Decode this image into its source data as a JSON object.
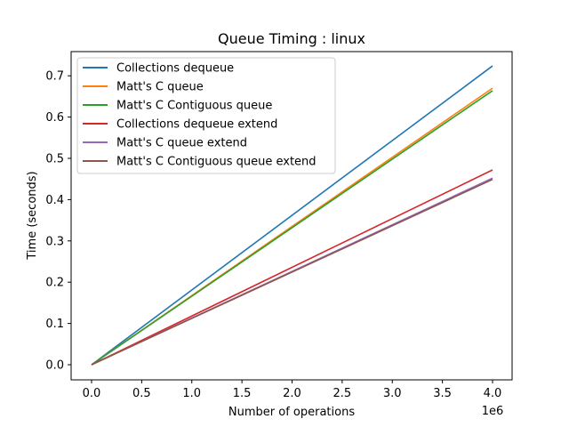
{
  "chart_data": {
    "type": "line",
    "title": "Queue Timing : linux",
    "xlabel": "Number of operations",
    "ylabel": "Time (seconds)",
    "x_offset_label": "1e6",
    "xlim": [
      -0.2,
      4.2
    ],
    "ylim": [
      -0.036,
      0.76
    ],
    "xticks": [
      "0.0",
      "0.5",
      "1.0",
      "1.5",
      "2.0",
      "2.5",
      "3.0",
      "3.5",
      "4.0"
    ],
    "yticks": [
      "0.0",
      "0.1",
      "0.2",
      "0.3",
      "0.4",
      "0.5",
      "0.6",
      "0.7"
    ],
    "grid": false,
    "legend_position": "upper left",
    "x": [
      0,
      4.0
    ],
    "series": [
      {
        "name": "Collections dequeue",
        "color": "#1f77b4",
        "values": [
          0,
          0.724
        ]
      },
      {
        "name": "Matt's C queue",
        "color": "#ff7f0e",
        "values": [
          0,
          0.67
        ]
      },
      {
        "name": "Matt's C Contiguous queue",
        "color": "#2ca02c",
        "values": [
          0,
          0.664
        ]
      },
      {
        "name": "Collections dequeue extend",
        "color": "#d62728",
        "values": [
          0,
          0.472
        ]
      },
      {
        "name": "Matt's C queue extend",
        "color": "#9467bd",
        "values": [
          0,
          0.452
        ]
      },
      {
        "name": "Matt's C Contiguous queue extend",
        "color": "#8c564b",
        "values": [
          0,
          0.449
        ]
      }
    ]
  }
}
